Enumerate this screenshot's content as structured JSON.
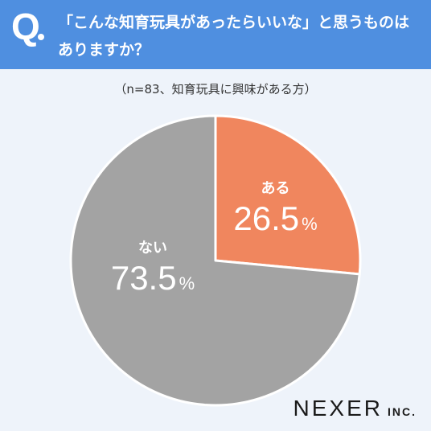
{
  "header": {
    "q_mark": "Q",
    "line1": "「こんな知育玩具があったらいいな」と思うものは",
    "line2": "ありますか？"
  },
  "subtitle": "（n=83、知育玩具に興味がある方）",
  "colors": {
    "header_bg": "#4f8fe0",
    "page_bg": "#eef3fa",
    "slice_aru": "#f0865e",
    "slice_nai": "#a3a3a3"
  },
  "chart_data": {
    "type": "pie",
    "title": "",
    "categories": [
      "ある",
      "ない"
    ],
    "values": [
      26.5,
      73.5
    ],
    "unit": "%",
    "start_angle_deg": 0,
    "direction": "clockwise"
  },
  "logo": {
    "main": "NEXER",
    "sub": "INC."
  }
}
